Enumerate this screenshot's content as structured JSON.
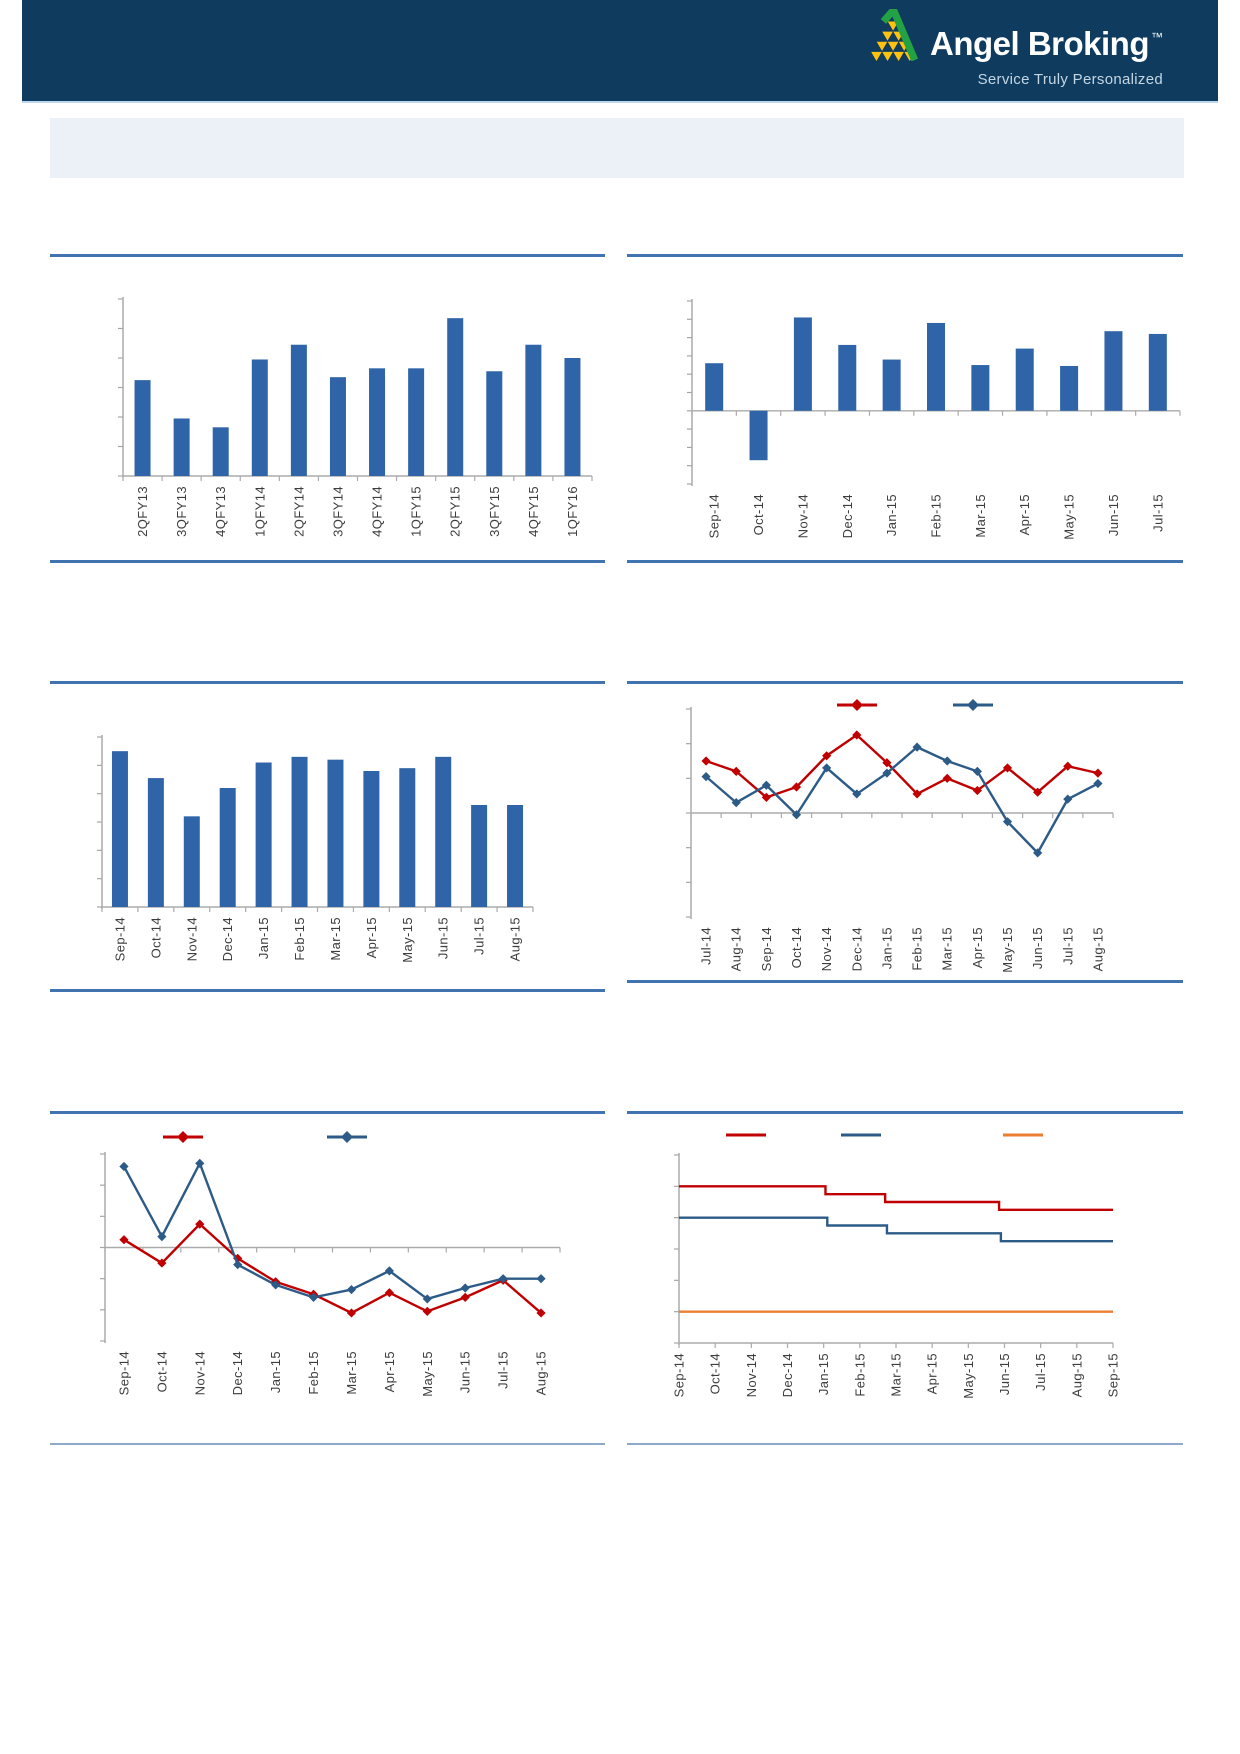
{
  "header": {
    "brand": "Angel Broking",
    "trademark": "™",
    "tagline": "Service Truly Personalized",
    "logo_icon": "angel-broking-pyramid-logo",
    "colors": {
      "background": "#0E3B5E",
      "logo_green": "#22A245",
      "logo_yellow": "#FFC20D",
      "tagline_text": "#C4D6E4"
    }
  },
  "summary_panel": {
    "text": "",
    "background": "#ECF1F8"
  },
  "theme": {
    "rule_blue": "#4173B0",
    "rule_light": "#8FA9C9",
    "axis_gray": "#A6A6A6",
    "baseline_gray": "#ABABAB",
    "label_color": "#3D3D3D",
    "bar_blue": "#2F64A8",
    "series_red": "#C00000",
    "series_dark_blue": "#2D5B88",
    "series_orange": "#ED7D31"
  },
  "chart_data": [
    {
      "id": "c1",
      "name": "quarterly-results-bar-chart",
      "type": "bar",
      "title": "",
      "source_note": "",
      "categories": [
        "2QFY13",
        "3QFY13",
        "4QFY13",
        "1QFY14",
        "2QFY14",
        "3QFY14",
        "4QFY14",
        "1QFY15",
        "2QFY15",
        "3QFY15",
        "4QFY15",
        "1QFY16"
      ],
      "values": [
        3.25,
        1.95,
        1.65,
        3.95,
        4.45,
        3.35,
        3.65,
        3.65,
        5.35,
        3.55,
        4.45,
        4.0
      ],
      "bar_color": "#2F64A8",
      "ylim": [
        0,
        6
      ],
      "ytick_step": 1,
      "y_tick_labels_visible": false,
      "grid": "off",
      "legend_position": "none"
    },
    {
      "id": "c2",
      "name": "monthly-growth-bar-chart",
      "type": "bar",
      "title": "",
      "source_note": "",
      "categories": [
        "Sep-14",
        "Oct-14",
        "Nov-14",
        "Dec-14",
        "Jan-15",
        "Feb-15",
        "Mar-15",
        "Apr-15",
        "May-15",
        "Jun-15",
        "Jul-15"
      ],
      "values": [
        2.6,
        -2.7,
        5.1,
        3.6,
        2.8,
        4.8,
        2.5,
        3.4,
        2.45,
        4.35,
        4.2
      ],
      "bar_color": "#2F64A8",
      "ylim": [
        -4,
        6
      ],
      "ytick_step": 1,
      "y_tick_labels_visible": false,
      "grid": "off",
      "legend_position": "none"
    },
    {
      "id": "c3",
      "name": "monthly-volume-bar-chart",
      "type": "bar",
      "title": "",
      "source_note": "",
      "categories": [
        "Sep-14",
        "Oct-14",
        "Nov-14",
        "Dec-14",
        "Jan-15",
        "Feb-15",
        "Mar-15",
        "Apr-15",
        "May-15",
        "Jun-15",
        "Jul-15",
        "Aug-15"
      ],
      "values": [
        5.5,
        4.55,
        3.2,
        4.2,
        5.1,
        5.3,
        5.2,
        4.8,
        4.9,
        5.3,
        3.6,
        3.6
      ],
      "bar_color": "#2F64A8",
      "ylim": [
        0,
        6
      ],
      "ytick_step": 1,
      "y_tick_labels_visible": false,
      "grid": "off",
      "legend_position": "none"
    },
    {
      "id": "c4",
      "name": "two-series-trend-line-chart",
      "type": "line",
      "title": "",
      "source_note": "",
      "categories": [
        "Jul-14",
        "Aug-14",
        "Sep-14",
        "Oct-14",
        "Nov-14",
        "Dec-14",
        "Jan-15",
        "Feb-15",
        "Mar-15",
        "Apr-15",
        "May-15",
        "Jun-15",
        "Jul-15",
        "Aug-15"
      ],
      "series": [
        {
          "label": "",
          "color": "#C00000",
          "marker": "diamond",
          "values": [
            1.5,
            1.2,
            0.45,
            0.75,
            1.65,
            2.25,
            1.45,
            0.55,
            1.0,
            0.65,
            1.3,
            0.6,
            1.35,
            1.15
          ]
        },
        {
          "label": "",
          "color": "#2D5B88",
          "marker": "diamond",
          "values": [
            1.05,
            0.3,
            0.8,
            -0.05,
            1.3,
            0.55,
            1.15,
            1.9,
            1.5,
            1.2,
            -0.25,
            -1.15,
            0.4,
            0.85
          ]
        }
      ],
      "ylim": [
        -3,
        3
      ],
      "ytick_step": 1,
      "y_tick_labels_visible": false,
      "grid": "off",
      "legend_position": "top"
    },
    {
      "id": "c5",
      "name": "growth-comparison-line-chart",
      "type": "line",
      "title": "",
      "source_note": "",
      "categories": [
        "Sep-14",
        "Oct-14",
        "Nov-14",
        "Dec-14",
        "Jan-15",
        "Feb-15",
        "Mar-15",
        "Apr-15",
        "May-15",
        "Jun-15",
        "Jul-15",
        "Aug-15"
      ],
      "series": [
        {
          "label": "",
          "color": "#C00000",
          "marker": "diamond",
          "values": [
            0.25,
            -0.5,
            0.75,
            -0.35,
            -1.1,
            -1.5,
            -2.1,
            -1.45,
            -2.05,
            -1.6,
            -1.05,
            -2.1
          ]
        },
        {
          "label": "",
          "color": "#2D5B88",
          "marker": "diamond",
          "values": [
            2.6,
            0.35,
            2.7,
            -0.55,
            -1.2,
            -1.6,
            -1.35,
            -0.75,
            -1.65,
            -1.3,
            -1.0,
            -1.0
          ]
        }
      ],
      "ylim": [
        -3,
        3
      ],
      "ytick_step": 1,
      "y_tick_labels_visible": false,
      "grid": "off",
      "legend_position": "top"
    },
    {
      "id": "c6",
      "name": "policy-rates-step-chart",
      "type": "step",
      "title": "",
      "source_note": "",
      "categories": [
        "Sep-14",
        "Oct-14",
        "Nov-14",
        "Dec-14",
        "Jan-15",
        "Feb-15",
        "Mar-15",
        "Apr-15",
        "May-15",
        "Jun-15",
        "Jul-15",
        "Aug-15",
        "Sep-15"
      ],
      "series": [
        {
          "label": "",
          "color": "#C00000",
          "points": [
            [
              0,
              8.0
            ],
            [
              4.05,
              8.0
            ],
            [
              4.05,
              7.75
            ],
            [
              5.7,
              7.75
            ],
            [
              5.7,
              7.5
            ],
            [
              8.85,
              7.5
            ],
            [
              8.85,
              7.25
            ],
            [
              12,
              7.25
            ]
          ]
        },
        {
          "label": "",
          "color": "#2D5B88",
          "points": [
            [
              0,
              7.0
            ],
            [
              4.1,
              7.0
            ],
            [
              4.1,
              6.75
            ],
            [
              5.75,
              6.75
            ],
            [
              5.75,
              6.5
            ],
            [
              8.9,
              6.5
            ],
            [
              8.9,
              6.25
            ],
            [
              12,
              6.25
            ]
          ]
        },
        {
          "label": "",
          "color": "#ED7D31",
          "points": [
            [
              0,
              4.0
            ],
            [
              12,
              4.0
            ]
          ]
        }
      ],
      "ylim": [
        3,
        9
      ],
      "ytick_step": 1,
      "y_tick_labels_visible": false,
      "grid": "off",
      "legend_position": "top"
    }
  ]
}
